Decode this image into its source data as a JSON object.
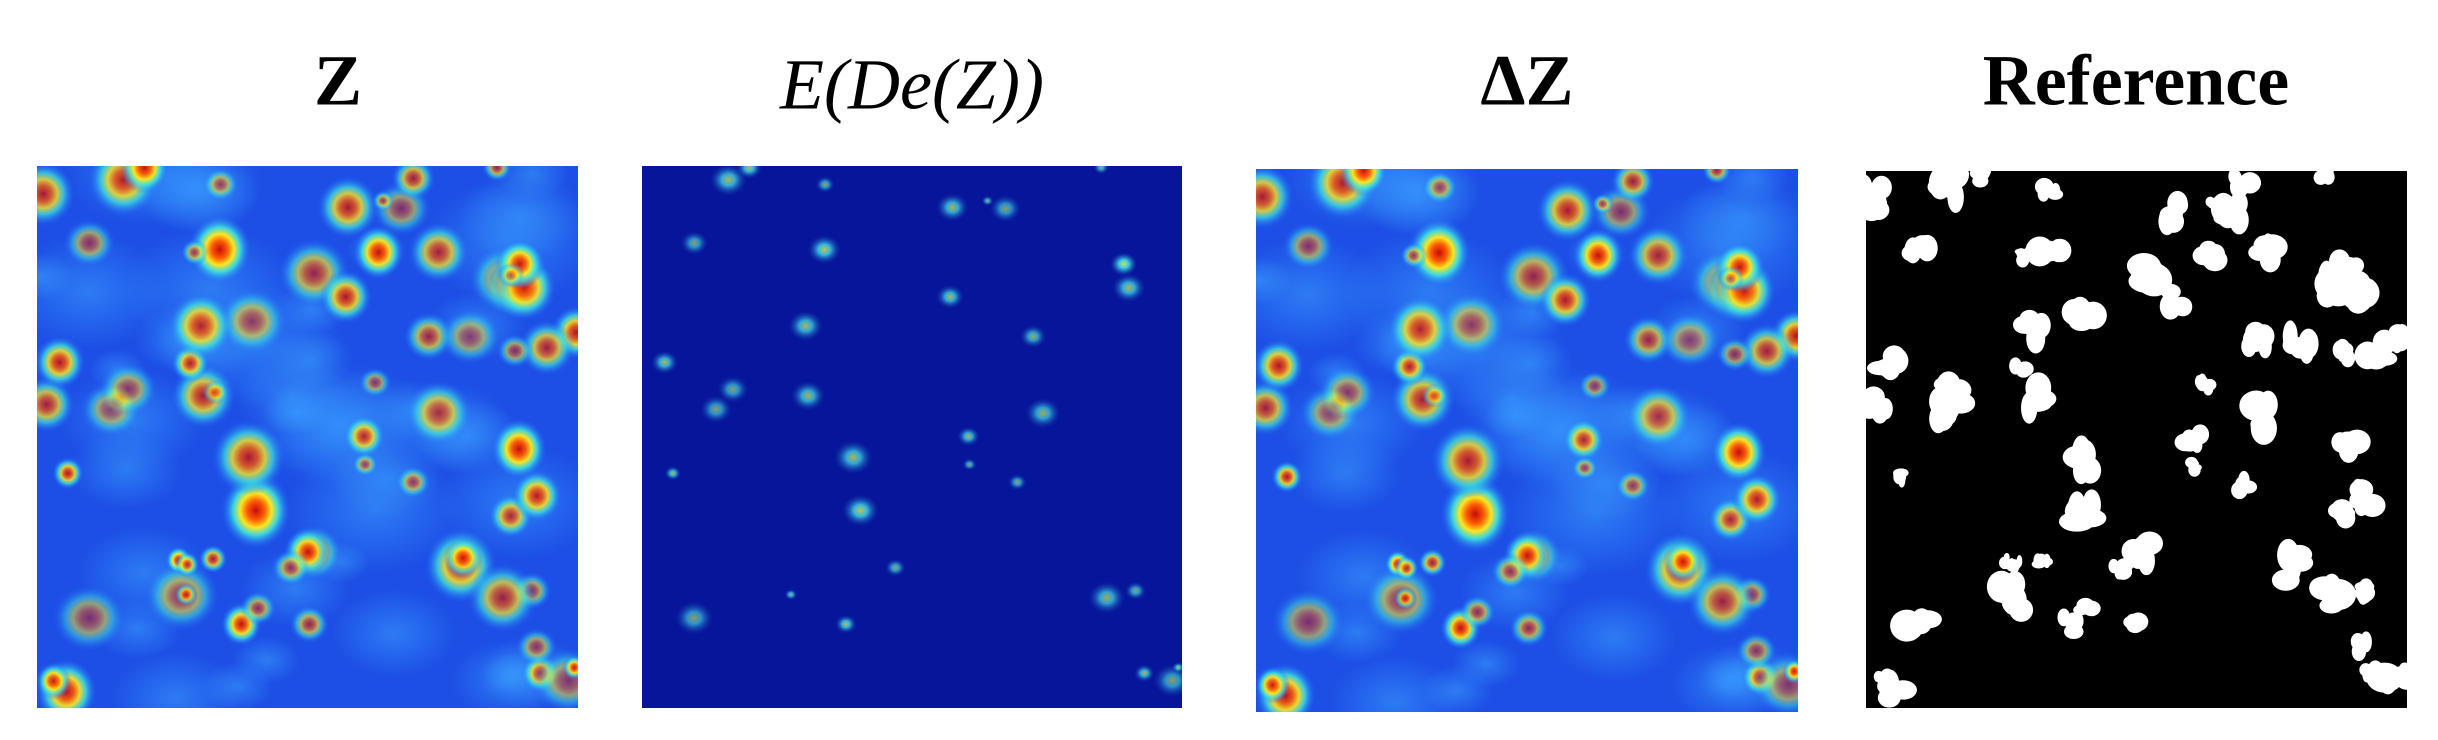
{
  "panels": [
    {
      "title": "Z"
    },
    {
      "title": "E(De(Z))"
    },
    {
      "title": "ΔZ"
    },
    {
      "title": "Reference"
    }
  ]
}
